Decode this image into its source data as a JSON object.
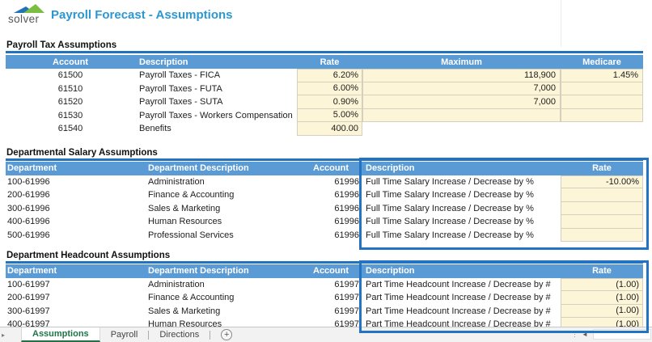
{
  "logo": {
    "text": "solver"
  },
  "title": "Payroll Forecast - Assumptions",
  "sections": [
    {
      "heading": "Payroll Tax Assumptions",
      "columns": [
        "Account",
        "Description",
        "Rate",
        "Maximum",
        "Medicare"
      ],
      "rows": [
        [
          "61500",
          "Payroll Taxes - FICA",
          "6.20%",
          "118,900",
          "1.45%"
        ],
        [
          "61510",
          "Payroll Taxes - FUTA",
          "6.00%",
          "7,000",
          ""
        ],
        [
          "61520",
          "Payroll Taxes - SUTA",
          "0.90%",
          "7,000",
          ""
        ],
        [
          "61530",
          "Payroll Taxes - Workers Compensation",
          "5.00%",
          "",
          ""
        ],
        [
          "61540",
          "Benefits",
          "400.00",
          null,
          null
        ]
      ]
    },
    {
      "heading": "Departmental Salary Assumptions",
      "columns": [
        "Department",
        "Department Description",
        "Account",
        "Description",
        "Rate"
      ],
      "rows": [
        [
          "100-61996",
          "Administration",
          "61996",
          "Full Time Salary Increase / Decrease by %",
          "-10.00%"
        ],
        [
          "200-61996",
          "Finance & Accounting",
          "61996",
          "Full Time Salary Increase / Decrease by %",
          ""
        ],
        [
          "300-61996",
          "Sales & Marketing",
          "61996",
          "Full Time Salary Increase / Decrease by %",
          ""
        ],
        [
          "400-61996",
          "Human Resources",
          "61996",
          "Full Time Salary Increase / Decrease by %",
          ""
        ],
        [
          "500-61996",
          "Professional Services",
          "61996",
          "Full Time Salary Increase / Decrease by %",
          ""
        ]
      ]
    },
    {
      "heading": "Department Headcount Assumptions",
      "columns": [
        "Department",
        "Department Description",
        "Account",
        "Description",
        "Rate"
      ],
      "rows": [
        [
          "100-61997",
          "Administration",
          "61997",
          "Part Time Headcount Increase / Decrease by #",
          "(1.00)"
        ],
        [
          "200-61997",
          "Finance & Accounting",
          "61997",
          "Part Time Headcount Increase / Decrease by #",
          "(1.00)"
        ],
        [
          "300-61997",
          "Sales & Marketing",
          "61997",
          "Part Time Headcount Increase / Decrease by #",
          "(1.00)"
        ],
        [
          "400-61997",
          "Human Resources",
          "61997",
          "Part Time Headcount Increase / Decrease by #",
          "(1.00)"
        ]
      ]
    }
  ],
  "sheet_tabs": {
    "items": [
      {
        "label": "Assumptions",
        "active": true
      },
      {
        "label": "Payroll",
        "active": false
      },
      {
        "label": "Directions",
        "active": false
      }
    ]
  },
  "icons": {
    "add_sheet": "+",
    "tab_nav_right": "▸",
    "scroll_left": "◄",
    "grip": "⋮"
  },
  "colors": {
    "header_blue": "#5B9BD5",
    "heading_rule_blue": "#2272BE",
    "selection_box_blue": "#2273C4",
    "input_yellow": "#FDF5D7",
    "input_border": "#D5D0BE",
    "title_blue": "#2B97D3",
    "active_tab_green": "#217346",
    "logo_green": "#7CBE42",
    "logo_blue": "#2173B9",
    "logo_text": "#58595B"
  }
}
